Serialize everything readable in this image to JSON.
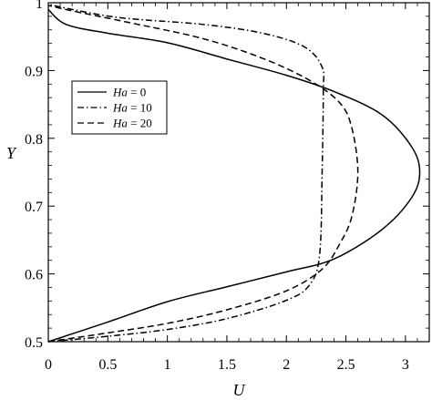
{
  "chart_data": {
    "type": "line",
    "xlabel": "U",
    "ylabel": "Y",
    "xlim": [
      0,
      3.2
    ],
    "ylim": [
      0.5,
      1.0
    ],
    "xticks": [
      "0",
      "0.5",
      "1",
      "1.5",
      "2",
      "2.5",
      "3"
    ],
    "yticks": [
      "0.5",
      "0.6",
      "0.7",
      "0.8",
      "0.9",
      "1"
    ],
    "legend_position": "upper-left",
    "series": [
      {
        "name_prefix": "Ha",
        "name_suffix": " = 0",
        "dash": "solid",
        "points": [
          [
            0,
            0.5
          ],
          [
            0.5,
            0.529
          ],
          [
            1,
            0.559
          ],
          [
            1.5,
            0.581
          ],
          [
            2,
            0.603
          ],
          [
            2.4,
            0.622
          ],
          [
            2.8,
            0.665
          ],
          [
            3.05,
            0.712
          ],
          [
            3.12,
            0.75
          ],
          [
            3.05,
            0.788
          ],
          [
            2.8,
            0.835
          ],
          [
            2.4,
            0.869
          ],
          [
            2,
            0.893
          ],
          [
            1.5,
            0.917
          ],
          [
            1,
            0.941
          ],
          [
            0.5,
            0.955
          ],
          [
            0.15,
            0.968
          ],
          [
            0,
            0.99
          ]
        ]
      },
      {
        "name_prefix": "Ha",
        "name_suffix": " = 10",
        "dash": "dashdot",
        "points": [
          [
            0,
            0.5
          ],
          [
            0.5,
            0.508
          ],
          [
            1,
            0.518
          ],
          [
            1.5,
            0.534
          ],
          [
            2,
            0.561
          ],
          [
            2.2,
            0.585
          ],
          [
            2.28,
            0.63
          ],
          [
            2.3,
            0.75
          ],
          [
            2.31,
            0.87
          ],
          [
            2.3,
            0.905
          ],
          [
            2.15,
            0.935
          ],
          [
            1.8,
            0.955
          ],
          [
            1.3,
            0.968
          ],
          [
            0.6,
            0.978
          ],
          [
            0.15,
            0.992
          ],
          [
            0,
            0.998
          ]
        ]
      },
      {
        "name_prefix": "Ha",
        "name_suffix": " = 20",
        "dash": "dashed",
        "points": [
          [
            0,
            0.5
          ],
          [
            0.5,
            0.513
          ],
          [
            1,
            0.527
          ],
          [
            1.5,
            0.547
          ],
          [
            2,
            0.575
          ],
          [
            2.3,
            0.607
          ],
          [
            2.45,
            0.645
          ],
          [
            2.55,
            0.685
          ],
          [
            2.6,
            0.75
          ],
          [
            2.55,
            0.815
          ],
          [
            2.45,
            0.852
          ],
          [
            2.2,
            0.885
          ],
          [
            1.8,
            0.918
          ],
          [
            1.3,
            0.947
          ],
          [
            0.7,
            0.97
          ],
          [
            0.2,
            0.988
          ],
          [
            0,
            0.996
          ]
        ]
      }
    ]
  }
}
